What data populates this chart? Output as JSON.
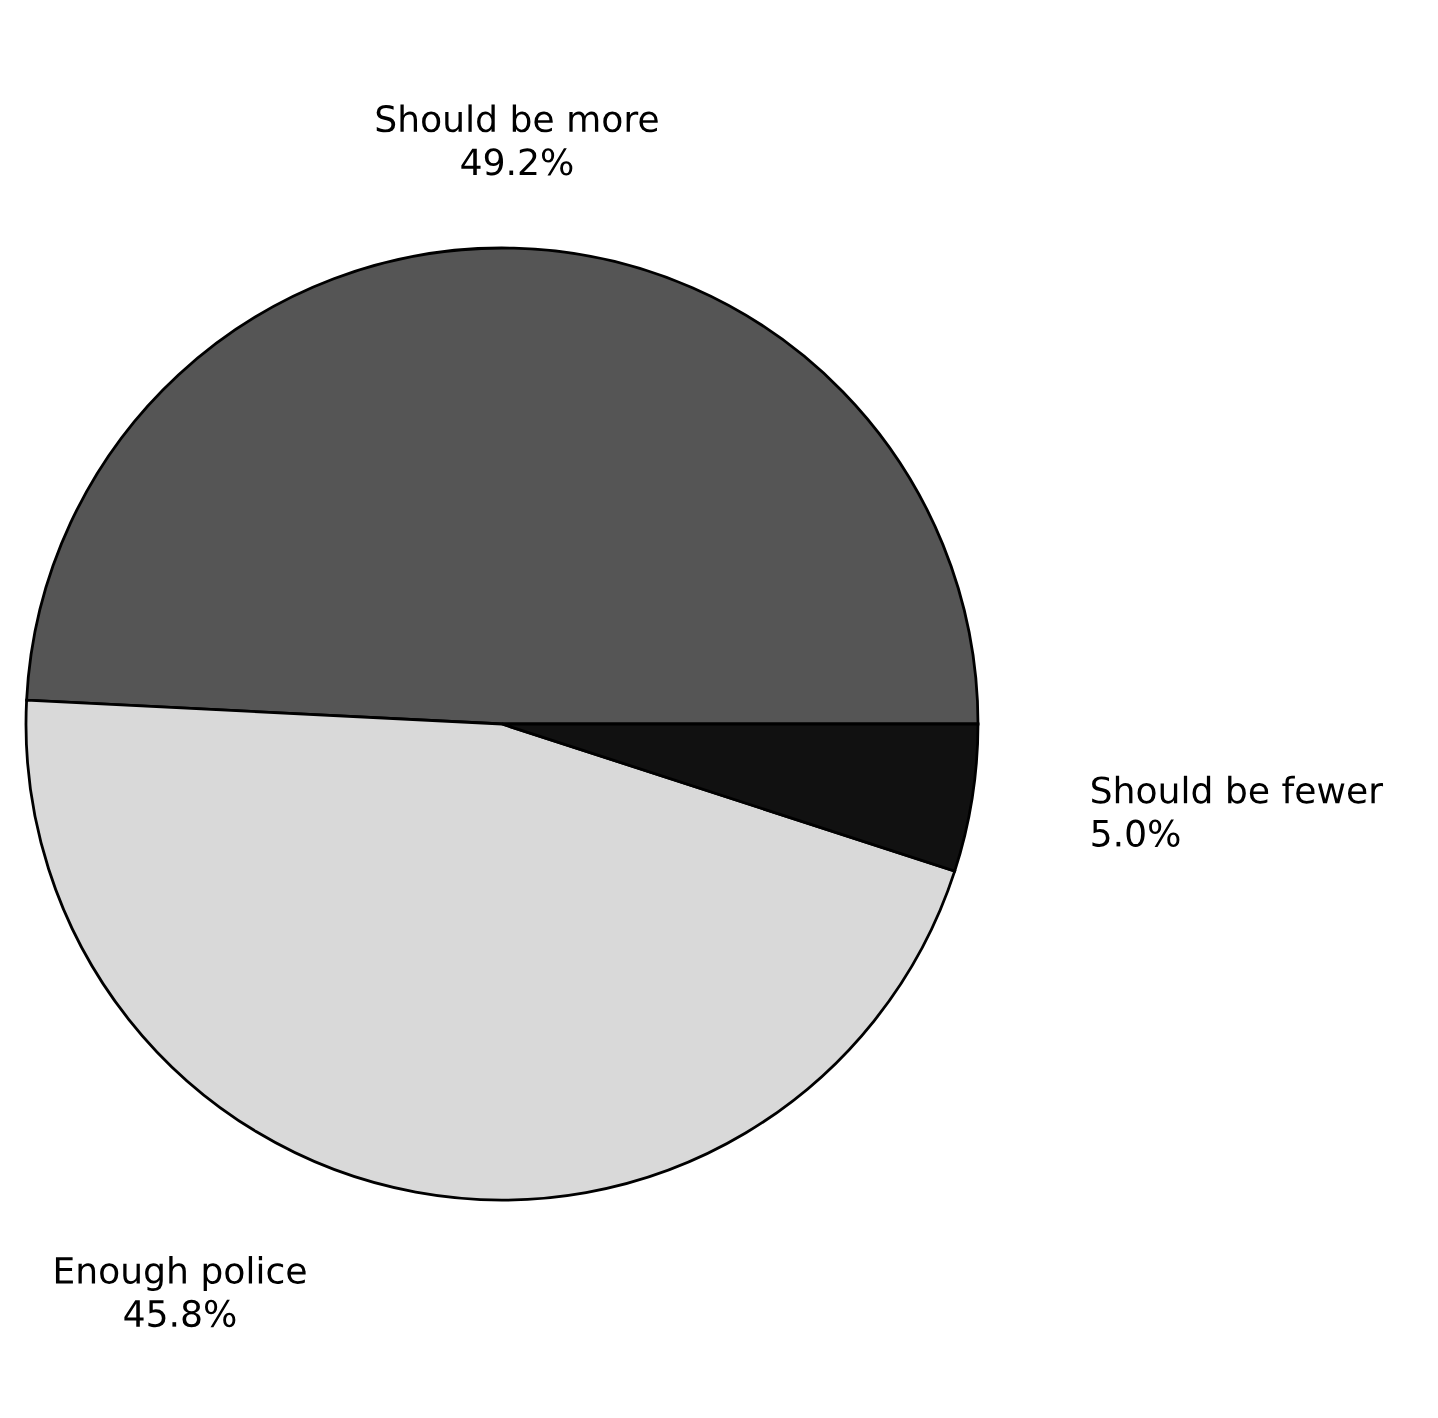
{
  "chart_data": {
    "type": "pie",
    "categories": [
      "Should be more",
      "Enough police",
      "Should be fewer"
    ],
    "values": [
      49.2,
      45.8,
      5.0
    ],
    "value_labels": [
      "49.2%",
      "45.8%",
      "5.0%"
    ],
    "colors": [
      "#555555",
      "#d9d9d9",
      "#111111"
    ]
  }
}
